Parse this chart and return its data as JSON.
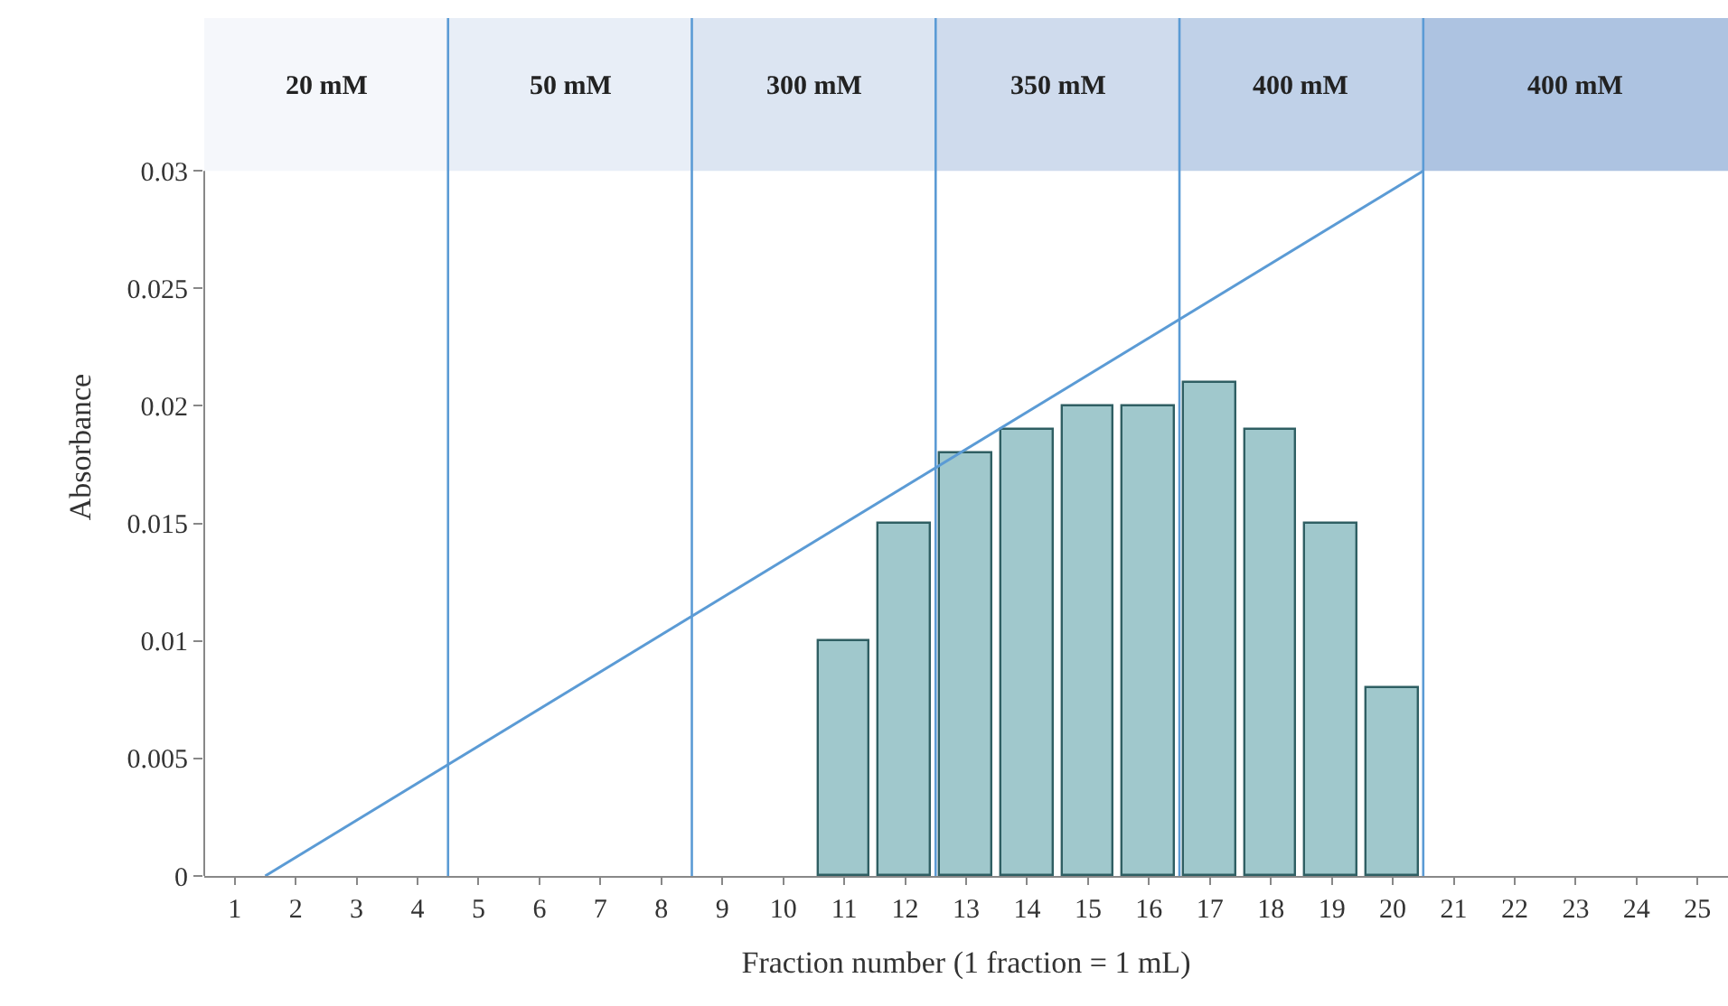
{
  "chart_data": {
    "type": "bar",
    "xlabel": "Fraction number (1 fraction = 1 mL)",
    "ylabel": "Absorbance",
    "xlim": [
      0.5,
      25.5
    ],
    "xticks": [
      1,
      2,
      3,
      4,
      5,
      6,
      7,
      8,
      9,
      10,
      11,
      12,
      13,
      14,
      15,
      16,
      17,
      18,
      19,
      20,
      21,
      22,
      23,
      24,
      25
    ],
    "ylim": [
      0,
      0.0365
    ],
    "yticks": [
      0,
      0.005,
      0.01,
      0.015,
      0.02,
      0.025,
      0.03
    ],
    "grid": false,
    "series": [
      {
        "color": "#a0c8cc",
        "x": [
          11,
          12,
          13,
          14,
          15,
          16,
          17,
          18,
          19,
          20
        ],
        "values": [
          0.01,
          0.015,
          0.018,
          0.019,
          0.02,
          0.02,
          0.021,
          0.019,
          0.015,
          0.008
        ]
      },
      {
        "type": "line",
        "color": "#5b9bd5",
        "x": [
          1.5,
          20.5
        ],
        "values": [
          0,
          0.03
        ]
      }
    ],
    "bands": [
      {
        "axis": "x",
        "from": 0.5,
        "to": 4.5,
        "label": "20 mM",
        "color": "#f5f7fb"
      },
      {
        "axis": "x",
        "from": 4.5,
        "to": 8.5,
        "label": "50 mM",
        "color": "#e8eef7"
      },
      {
        "axis": "x",
        "from": 8.5,
        "to": 12.5,
        "label": "300 mM",
        "color": "#dce5f2"
      },
      {
        "axis": "x",
        "from": 12.5,
        "to": 16.5,
        "label": "350 mM",
        "color": "#cfdbed"
      },
      {
        "axis": "x",
        "from": 16.5,
        "to": 20.5,
        "label": "400 mM",
        "color": "#c0d1e8"
      },
      {
        "axis": "x",
        "from": 20.5,
        "to": 25.5,
        "label": "400 mM",
        "color": "#adc3e1"
      }
    ],
    "ref_lines": [
      {
        "axis": "x",
        "value": 4.5,
        "color": "#5b9bd5"
      },
      {
        "axis": "x",
        "value": 8.5,
        "color": "#5b9bd5"
      },
      {
        "axis": "x",
        "value": 12.5,
        "color": "#5b9bd5"
      },
      {
        "axis": "x",
        "value": 16.5,
        "color": "#5b9bd5"
      },
      {
        "axis": "x",
        "value": 20.5,
        "color": "#5b9bd5"
      }
    ]
  }
}
